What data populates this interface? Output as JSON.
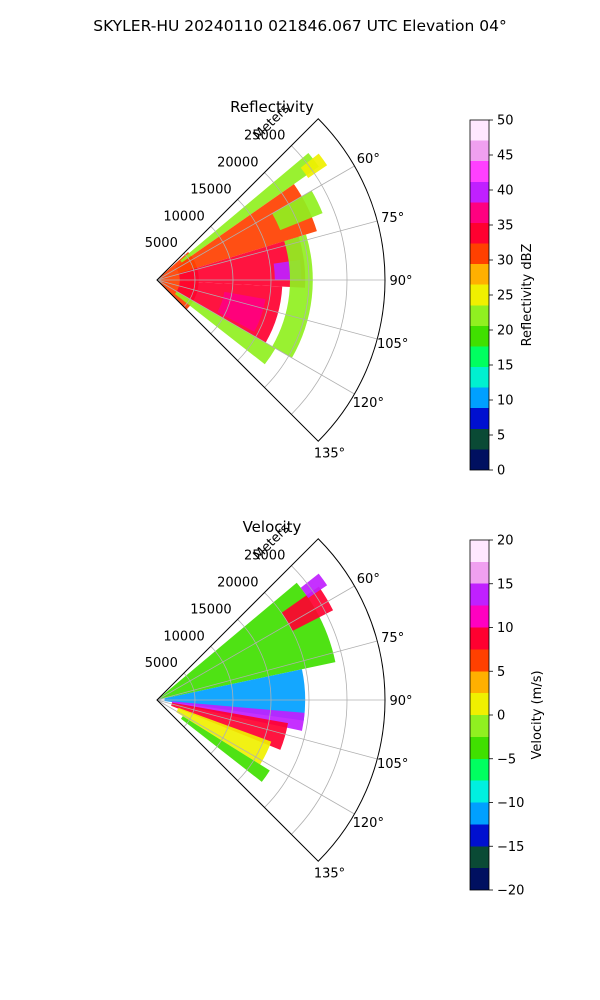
{
  "figure": {
    "suptitle": "SKYLER-HU  20240110  021846.067 UTC Elevation 04°"
  },
  "chart_data": [
    {
      "type": "heatmap",
      "projection": "polar-sector",
      "title": "Reflectivity",
      "radial_axis_label": "Meters",
      "radial_ticks": [
        5000,
        10000,
        15000,
        20000,
        25000
      ],
      "radial_tick_labels": [
        "5000",
        "10000",
        "15000",
        "20000",
        "25000"
      ],
      "r_max": 30000,
      "azimuth_range_deg": [
        45,
        135
      ],
      "azimuth_ticks": [
        60,
        75,
        90,
        105,
        120,
        135
      ],
      "azimuth_tick_labels": [
        "60°",
        "75°",
        "90°",
        "105°",
        "120°",
        "135°"
      ],
      "grid": true,
      "colorbar": {
        "label": "Reflectivity dBZ",
        "range": [
          0,
          50
        ],
        "ticks": [
          0,
          5,
          10,
          15,
          20,
          25,
          30,
          35,
          40,
          45,
          50
        ],
        "tick_labels": [
          "0",
          "5",
          "10",
          "15",
          "20",
          "25",
          "30",
          "35",
          "40",
          "45",
          "50"
        ],
        "stops": [
          "#001060",
          "#0a4a35",
          "#0010d0",
          "#00a0ff",
          "#00f0d0",
          "#00ff60",
          "#40e000",
          "#90f020",
          "#f0f000",
          "#ffb000",
          "#ff4000",
          "#ff0030",
          "#ff0080",
          "#c020ff",
          "#ff40ff",
          "#f0a0f0",
          "#ffe8ff"
        ]
      },
      "regions": [
        {
          "az": [
            48,
            135
          ],
          "r": [
            0,
            5500
          ],
          "value": 32
        },
        {
          "az": [
            50,
            55
          ],
          "r": [
            4000,
            26000
          ],
          "value": 21
        },
        {
          "az": [
            55,
            73
          ],
          "r": [
            3000,
            22000
          ],
          "value": 31
        },
        {
          "az": [
            60,
            68
          ],
          "r": [
            17500,
            23500
          ],
          "value": 22
        },
        {
          "az": [
            73,
            93
          ],
          "r": [
            3000,
            19500
          ],
          "value": 33
        },
        {
          "az": [
            82,
            90
          ],
          "r": [
            15500,
            19000
          ],
          "value": 40
        },
        {
          "az": [
            93,
            120
          ],
          "r": [
            3000,
            16500
          ],
          "value": 33
        },
        {
          "az": [
            100,
            118
          ],
          "r": [
            9000,
            14500
          ],
          "value": 39
        },
        {
          "az": [
            73,
            120
          ],
          "r": [
            17500,
            20500
          ],
          "value": 21
        },
        {
          "az": [
            120,
            128
          ],
          "r": [
            3000,
            18000
          ],
          "value": 23
        },
        {
          "az": [
            52,
            56
          ],
          "r": [
            24000,
            27000
          ],
          "value": 24
        }
      ]
    },
    {
      "type": "heatmap",
      "projection": "polar-sector",
      "title": "Velocity",
      "radial_axis_label": "Meters",
      "radial_ticks": [
        5000,
        10000,
        15000,
        20000,
        25000
      ],
      "radial_tick_labels": [
        "5000",
        "10000",
        "15000",
        "20000",
        "25000"
      ],
      "r_max": 30000,
      "azimuth_range_deg": [
        45,
        135
      ],
      "azimuth_ticks": [
        60,
        75,
        90,
        105,
        120,
        135
      ],
      "azimuth_tick_labels": [
        "60°",
        "75°",
        "90°",
        "105°",
        "120°",
        "135°"
      ],
      "grid": true,
      "colorbar": {
        "label": "Velocity (m/s)",
        "range": [
          -20,
          20
        ],
        "ticks": [
          -20,
          -15,
          -10,
          -5,
          0,
          5,
          10,
          15,
          20
        ],
        "tick_labels": [
          "−20",
          "−15",
          "−10",
          "−5",
          "0",
          "5",
          "10",
          "15",
          "20"
        ],
        "stops": [
          "#001060",
          "#0a4a35",
          "#0010d0",
          "#00a0ff",
          "#00f0e0",
          "#00ff60",
          "#40e000",
          "#90f020",
          "#f0f000",
          "#ffb000",
          "#ff4000",
          "#ff0030",
          "#ff00c0",
          "#c020ff",
          "#f0a0f0",
          "#ffe8ff"
        ]
      },
      "regions": [
        {
          "az": [
            50,
            78
          ],
          "r": [
            0,
            24000
          ],
          "value": -4
        },
        {
          "az": [
            55,
            63
          ],
          "r": [
            20000,
            26000
          ],
          "value": 10
        },
        {
          "az": [
            52,
            56
          ],
          "r": [
            24000,
            27000
          ],
          "value": 15
        },
        {
          "az": [
            78,
            98
          ],
          "r": [
            1000,
            19500
          ],
          "value": -11
        },
        {
          "az": [
            95,
            102
          ],
          "r": [
            2000,
            19500
          ],
          "value": 14
        },
        {
          "az": [
            100,
            112
          ],
          "r": [
            2000,
            17500
          ],
          "value": 9
        },
        {
          "az": [
            110,
            122
          ],
          "r": [
            3000,
            16000
          ],
          "value": 2
        },
        {
          "az": [
            122,
            128
          ],
          "r": [
            4000,
            17500
          ],
          "value": -5
        }
      ]
    }
  ]
}
